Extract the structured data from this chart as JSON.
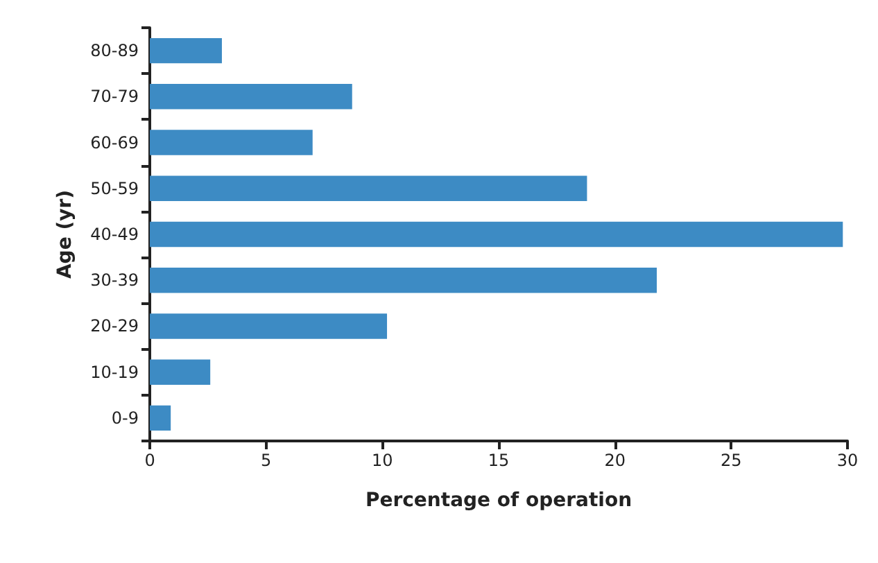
{
  "chart_data": {
    "type": "bar",
    "orientation": "horizontal",
    "xlabel": "Percentage of operation",
    "ylabel": "Age (yr)",
    "categories": [
      "80-89",
      "70-79",
      "60-69",
      "50-59",
      "40-49",
      "30-39",
      "20-29",
      "10-19",
      "0-9"
    ],
    "values": [
      3.1,
      8.7,
      7.0,
      18.8,
      29.8,
      21.8,
      10.2,
      2.6,
      0.9
    ],
    "color": "#3d8bc4",
    "xlim": [
      0,
      30
    ],
    "xticks": [
      0,
      5,
      10,
      15,
      20,
      25,
      30
    ],
    "grid": false
  }
}
